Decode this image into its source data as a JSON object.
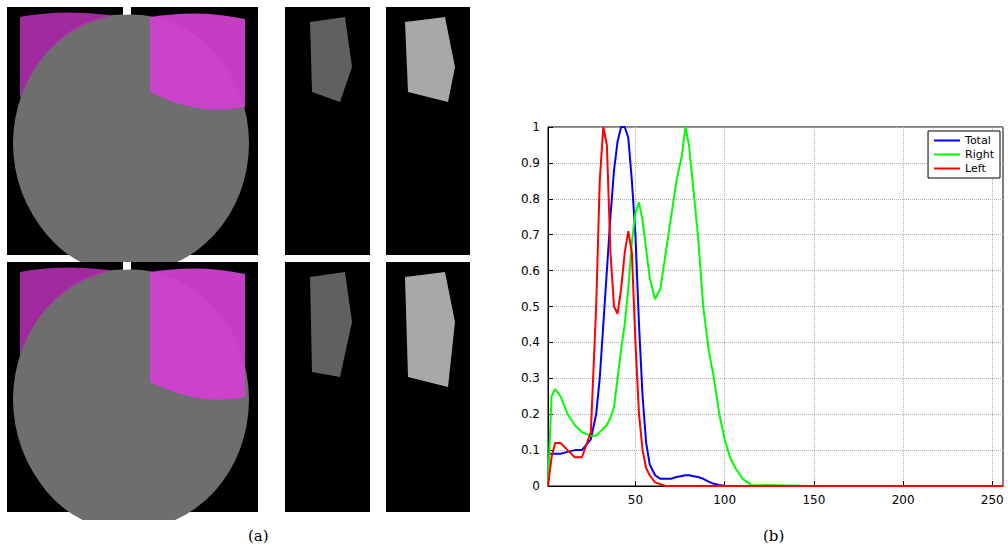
{
  "panel_labels": [
    "(a)",
    "(b)"
  ],
  "chart_data": {
    "type": "line",
    "x": [
      1,
      3,
      5,
      8,
      12,
      16,
      20,
      25,
      28,
      30,
      32,
      34,
      36,
      38,
      40,
      42,
      44,
      46,
      48,
      50,
      52,
      54,
      56,
      58,
      61,
      64,
      67,
      70,
      73,
      76,
      78,
      80,
      82,
      85,
      88,
      91,
      94,
      97,
      100,
      103,
      106,
      110,
      115,
      150,
      200,
      256
    ],
    "series": [
      {
        "name": "Total",
        "color": "#0000ff",
        "values": [
          0.09,
          0.09,
          0.09,
          0.09,
          0.095,
          0.1,
          0.1,
          0.13,
          0.2,
          0.3,
          0.45,
          0.6,
          0.75,
          0.88,
          0.96,
          1.0,
          1.0,
          0.97,
          0.85,
          0.7,
          0.45,
          0.25,
          0.12,
          0.06,
          0.03,
          0.02,
          0.02,
          0.02,
          0.025,
          0.028,
          0.03,
          0.03,
          0.028,
          0.025,
          0.02,
          0.012,
          0.006,
          0.003,
          0.001,
          0,
          0,
          0,
          0,
          0,
          0,
          0
        ]
      },
      {
        "name": "Right",
        "color": "#00ff00",
        "values": [
          0,
          0.25,
          0.27,
          0.25,
          0.2,
          0.17,
          0.15,
          0.14,
          0.14,
          0.15,
          0.16,
          0.17,
          0.19,
          0.22,
          0.3,
          0.38,
          0.45,
          0.55,
          0.68,
          0.76,
          0.79,
          0.74,
          0.66,
          0.58,
          0.52,
          0.55,
          0.65,
          0.75,
          0.85,
          0.92,
          1.0,
          0.95,
          0.85,
          0.7,
          0.5,
          0.38,
          0.3,
          0.2,
          0.13,
          0.08,
          0.05,
          0.02,
          0.003,
          0,
          0,
          0
        ]
      },
      {
        "name": "Left",
        "color": "#ff0000",
        "values": [
          0,
          0.08,
          0.12,
          0.12,
          0.1,
          0.08,
          0.08,
          0.15,
          0.5,
          0.85,
          1.0,
          0.95,
          0.65,
          0.5,
          0.48,
          0.55,
          0.65,
          0.71,
          0.65,
          0.4,
          0.2,
          0.1,
          0.05,
          0.03,
          0.01,
          0.005,
          0,
          0,
          0,
          0,
          0,
          0,
          0,
          0,
          0,
          0,
          0,
          0,
          0,
          0,
          0,
          0,
          0,
          0,
          0,
          0
        ]
      }
    ],
    "xlim": [
      1,
      256
    ],
    "xticks": [
      50,
      100,
      150,
      200,
      250
    ],
    "ylim": [
      0,
      1
    ],
    "yticks": [
      0,
      0.1,
      0.2,
      0.3,
      0.4,
      0.5,
      0.6,
      0.7,
      0.8,
      0.9,
      1
    ],
    "grid": true,
    "legend": "top-right"
  }
}
